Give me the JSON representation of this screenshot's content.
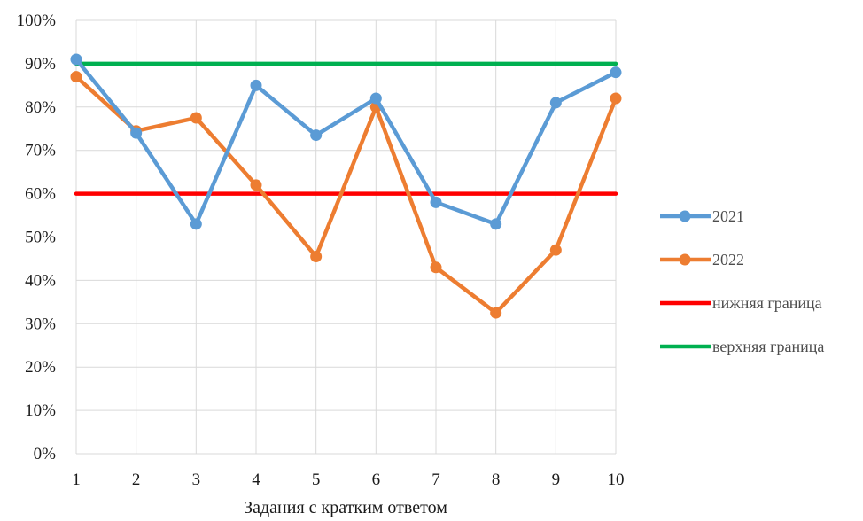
{
  "chart_data": {
    "type": "line",
    "title": "",
    "xlabel": "Задания с кратким ответом",
    "ylabel": "",
    "categories": [
      "1",
      "2",
      "3",
      "4",
      "5",
      "6",
      "7",
      "8",
      "9",
      "10"
    ],
    "yticks": [
      "0%",
      "10%",
      "20%",
      "30%",
      "40%",
      "50%",
      "60%",
      "70%",
      "80%",
      "90%",
      "100%"
    ],
    "ylim": [
      0,
      100
    ],
    "grid": true,
    "legend_position": "right",
    "series": [
      {
        "name": "2021",
        "color": "#5b9bd5",
        "markers": true,
        "values": [
          91,
          74,
          53,
          85,
          73.5,
          82,
          58,
          53,
          81,
          88
        ]
      },
      {
        "name": "2022",
        "color": "#ed7d31",
        "markers": true,
        "values": [
          87,
          74.5,
          77.5,
          62,
          45.5,
          80,
          43,
          32.5,
          47,
          82
        ]
      },
      {
        "name": "нижняя граница",
        "color": "#ff0000",
        "markers": false,
        "values": [
          60,
          60,
          60,
          60,
          60,
          60,
          60,
          60,
          60,
          60
        ]
      },
      {
        "name": "верхняя граница",
        "color": "#00b050",
        "markers": false,
        "values": [
          90,
          90,
          90,
          90,
          90,
          90,
          90,
          90,
          90,
          90
        ]
      }
    ]
  }
}
